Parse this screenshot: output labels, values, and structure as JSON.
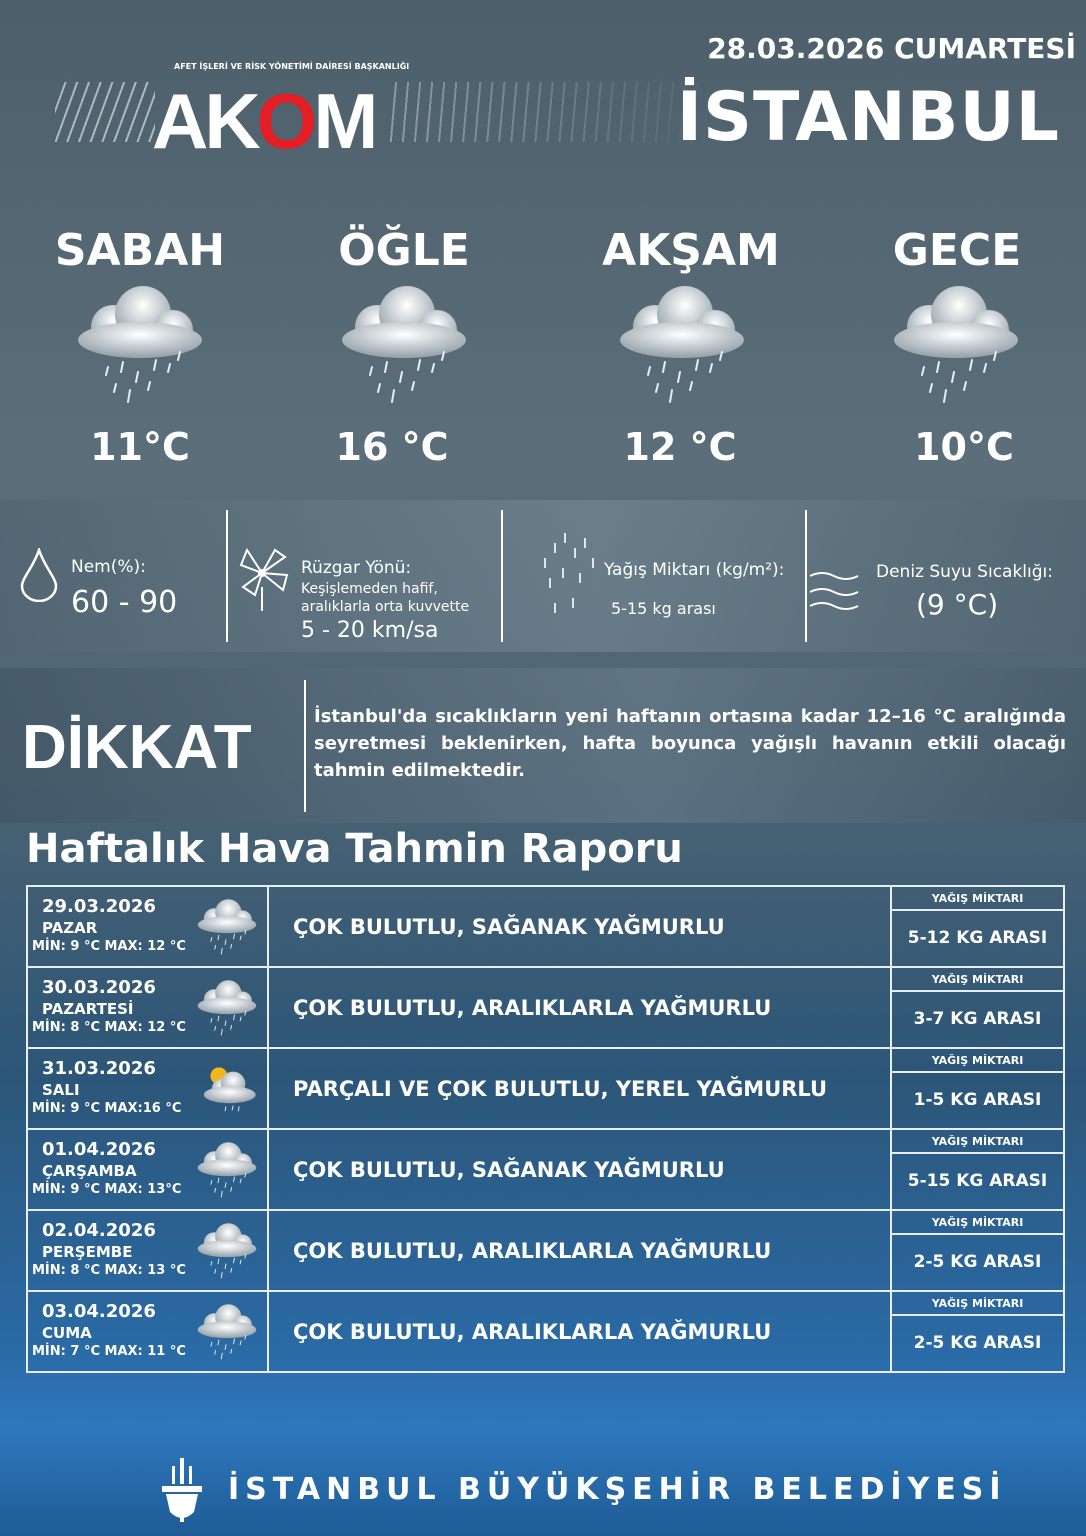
{
  "header": {
    "logo_subtitle": "AFET İŞLERİ VE RİSK YÖNETİMİ DAİRESİ BAŞKANLIĞI",
    "logo_text": "AKOM",
    "date": "28.03.2026 CUMARTESİ",
    "city": "İSTANBUL"
  },
  "periods": [
    {
      "name": "SABAH",
      "temp": "11°C",
      "icon": "cloud-rain-icon"
    },
    {
      "name": "ÖĞLE",
      "temp": "16 °C",
      "icon": "cloud-rain-icon"
    },
    {
      "name": "AKŞAM",
      "temp": "12 °C",
      "icon": "cloud-rain-icon"
    },
    {
      "name": "GECE",
      "temp": "10°C",
      "icon": "cloud-rain-icon"
    }
  ],
  "info": {
    "humidity": {
      "label": "Nem(%):",
      "value": "60 - 90"
    },
    "wind": {
      "label": "Rüzgar Yönü:",
      "desc1": "Keşişlemeden hafif,",
      "desc2": "aralıklarla orta kuvvette",
      "value": "5 - 20 km/sa"
    },
    "rain": {
      "label": "Yağış Miktarı (kg/m²):",
      "value": "5-15 kg arası"
    },
    "sea": {
      "label": "Deniz Suyu Sıcaklığı:",
      "value": "(9 °C)"
    }
  },
  "warning": {
    "title": "DİKKAT",
    "text": "İstanbul'da sıcaklıkların yeni haftanın ortasına kadar 12–16 °C aralığında seyretmesi beklenirken, hafta boyunca yağışlı havanın etkili olacağı tahmin edilmektedir."
  },
  "weekly": {
    "title": "Haftalık Hava Tahmin Raporu",
    "amount_header": "YAĞIŞ MİKTARI",
    "days": [
      {
        "date": "29.03.2026",
        "day": "PAZAR",
        "minmax": "MİN: 9 °C MAX: 12 °C",
        "desc": "ÇOK BULUTLU, SAĞANAK YAĞMURLU",
        "amount": "5-12 KG ARASI",
        "icon": "cloud-rain-icon"
      },
      {
        "date": "30.03.2026",
        "day": "PAZARTESİ",
        "minmax": "MİN: 8  °C MAX: 12 °C",
        "desc": "ÇOK BULUTLU, ARALIKLARLA YAĞMURLU",
        "amount": "3-7 KG ARASI",
        "icon": "cloud-rain-icon"
      },
      {
        "date": "31.03.2026",
        "day": "SALI",
        "minmax": "MİN: 9 °C MAX:16 °C",
        "desc": "PARÇALI VE ÇOK BULUTLU, YEREL YAĞMURLU",
        "amount": "1-5 KG ARASI",
        "icon": "sun-cloud-rain-icon"
      },
      {
        "date": "01.04.2026",
        "day": "ÇARŞAMBA",
        "minmax": "MİN: 9 °C MAX: 13°C",
        "desc": "ÇOK BULUTLU, SAĞANAK YAĞMURLU",
        "amount": "5-15 KG ARASI",
        "icon": "cloud-rain-icon"
      },
      {
        "date": "02.04.2026",
        "day": "PERŞEMBE",
        "minmax": "MİN: 8 °C MAX: 13 °C",
        "desc": "ÇOK BULUTLU, ARALIKLARLA YAĞMURLU",
        "amount": "2-5 KG ARASI",
        "icon": "cloud-rain-icon"
      },
      {
        "date": "03.04.2026",
        "day": "CUMA",
        "minmax": "MİN: 7 °C MAX: 11 °C",
        "desc": "ÇOK BULUTLU, ARALIKLARLA YAĞMURLU",
        "amount": "2-5 KG ARASI",
        "icon": "cloud-rain-icon"
      }
    ]
  },
  "footer": {
    "text": "İSTANBUL BÜYÜKŞEHİR BELEDİYESİ"
  },
  "colors": {
    "akom_red": "#e31e24",
    "bottom_blue": "#2f78bd"
  }
}
